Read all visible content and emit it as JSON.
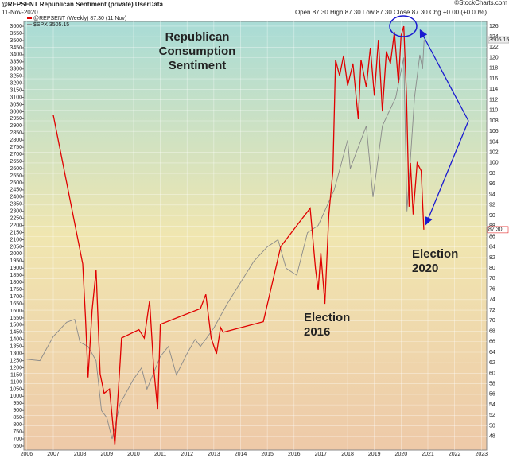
{
  "chart_data": {
    "type": "line",
    "title": "@REPSENT Republican Sentiment (private) UserData",
    "date": "11-Nov-2020",
    "quote": "Open 87.30  High 87.30  Low 87.30  Close 87.30  Chg +0.00 (+0.00%)",
    "source": "©StockCharts.com",
    "annotations": [
      {
        "lines": [
          "Republican",
          "Consumption",
          "Sentiment"
        ],
        "color": "#e00000"
      },
      {
        "lines": [
          "Election",
          "2016"
        ],
        "color": "#1a1ad0"
      },
      {
        "lines": [
          "Election",
          "2020"
        ],
        "color": "#1a1ad0"
      }
    ],
    "xlim": [
      2005.9,
      2023.2
    ],
    "xticks": [
      2006,
      2007,
      2008,
      2009,
      2010,
      2011,
      2012,
      2013,
      2014,
      2015,
      2016,
      2017,
      2018,
      2019,
      2020,
      2021,
      2022,
      2023
    ],
    "ylim": [
      622,
      3634
    ],
    "yticks": [
      650,
      700,
      750,
      800,
      850,
      900,
      950,
      1000,
      1050,
      1100,
      1150,
      1200,
      1250,
      1300,
      1350,
      1400,
      1450,
      1500,
      1550,
      1600,
      1650,
      1700,
      1750,
      1800,
      1850,
      1900,
      1950,
      2000,
      2050,
      2100,
      2150,
      2200,
      2250,
      2300,
      2350,
      2400,
      2450,
      2500,
      2550,
      2600,
      2650,
      2700,
      2750,
      2800,
      2850,
      2900,
      2950,
      3000,
      3050,
      3100,
      3150,
      3200,
      3250,
      3300,
      3350,
      3400,
      3450,
      3500,
      3550,
      3600
    ],
    "y2lim": [
      45.4,
      126.9
    ],
    "y2ticks": [
      48,
      50,
      52,
      54,
      56,
      58,
      60,
      62,
      64,
      66,
      68,
      70,
      72,
      74,
      76,
      78,
      80,
      82,
      84,
      86,
      88,
      90,
      92,
      94,
      96,
      98,
      100,
      102,
      104,
      106,
      108,
      110,
      112,
      114,
      116,
      118,
      120,
      122,
      124,
      126
    ],
    "grid": true,
    "series": [
      {
        "name": "$SPX 3505.15",
        "color": "#8a8a8a",
        "axis": "y",
        "last_value_label": "3505.15",
        "x": [
          2006.0,
          2006.5,
          2007.0,
          2007.5,
          2007.8,
          2008.0,
          2008.3,
          2008.6,
          2008.8,
          2009.0,
          2009.2,
          2009.5,
          2010.0,
          2010.3,
          2010.5,
          2011.0,
          2011.3,
          2011.6,
          2012.0,
          2012.3,
          2012.5,
          2013.0,
          2013.5,
          2014.0,
          2014.5,
          2015.0,
          2015.4,
          2015.7,
          2016.1,
          2016.5,
          2016.9,
          2017.5,
          2018.0,
          2018.1,
          2018.7,
          2018.95,
          2019.3,
          2019.8,
          2020.1,
          2020.22,
          2020.5,
          2020.7,
          2020.8,
          2020.86
        ],
        "values": [
          1260,
          1250,
          1420,
          1520,
          1540,
          1380,
          1350,
          1250,
          900,
          850,
          700,
          950,
          1120,
          1200,
          1050,
          1280,
          1350,
          1150,
          1300,
          1400,
          1350,
          1480,
          1650,
          1800,
          1950,
          2050,
          2100,
          1900,
          1850,
          2150,
          2200,
          2450,
          2800,
          2600,
          2900,
          2400,
          2900,
          3100,
          3380,
          2300,
          3100,
          3400,
          3300,
          3505.15
        ]
      },
      {
        "name": "@REPSENT (Weekly) 87.30 (11 Nov)",
        "color": "#e00000",
        "axis": "y2",
        "last_value_label": "87.30",
        "x": [
          2007.0,
          2008.1,
          2008.2,
          2008.3,
          2008.45,
          2008.6,
          2008.75,
          2008.9,
          2009.1,
          2009.3,
          2009.5,
          2009.55,
          2010.2,
          2010.4,
          2010.6,
          2010.75,
          2010.9,
          2011.0,
          2012.5,
          2012.7,
          2012.9,
          2013.1,
          2013.25,
          2013.35,
          2014.85,
          2015.5,
          2016.6,
          2016.8,
          2016.9,
          2017.0,
          2017.15,
          2017.3,
          2017.45,
          2017.55,
          2017.7,
          2017.85,
          2018.0,
          2018.2,
          2018.4,
          2018.5,
          2018.7,
          2018.85,
          2019.0,
          2019.15,
          2019.3,
          2019.45,
          2019.6,
          2019.75,
          2019.9,
          2020.0,
          2020.1,
          2020.2,
          2020.3,
          2020.35,
          2020.45,
          2020.6,
          2020.75,
          2020.85
        ],
        "values": [
          109.1,
          80.8,
          70.8,
          59.2,
          72,
          79.6,
          59.9,
          56.2,
          57,
          46.3,
          62.2,
          66.7,
          68.3,
          66.7,
          73.8,
          61.1,
          53.1,
          69.3,
          72.3,
          75,
          66.7,
          63.7,
          68.7,
          67.8,
          69.8,
          84.1,
          91.4,
          79.9,
          75.8,
          82.9,
          73.2,
          90.2,
          98.5,
          119.6,
          116.6,
          120.4,
          114.7,
          118.9,
          108.3,
          119.6,
          114.4,
          121.9,
          112.8,
          123.4,
          109.8,
          121.2,
          118.9,
          124.9,
          115.1,
          124.2,
          126,
          112.8,
          91.7,
          100,
          90.2,
          100,
          98.5,
          87.3
        ]
      }
    ]
  }
}
